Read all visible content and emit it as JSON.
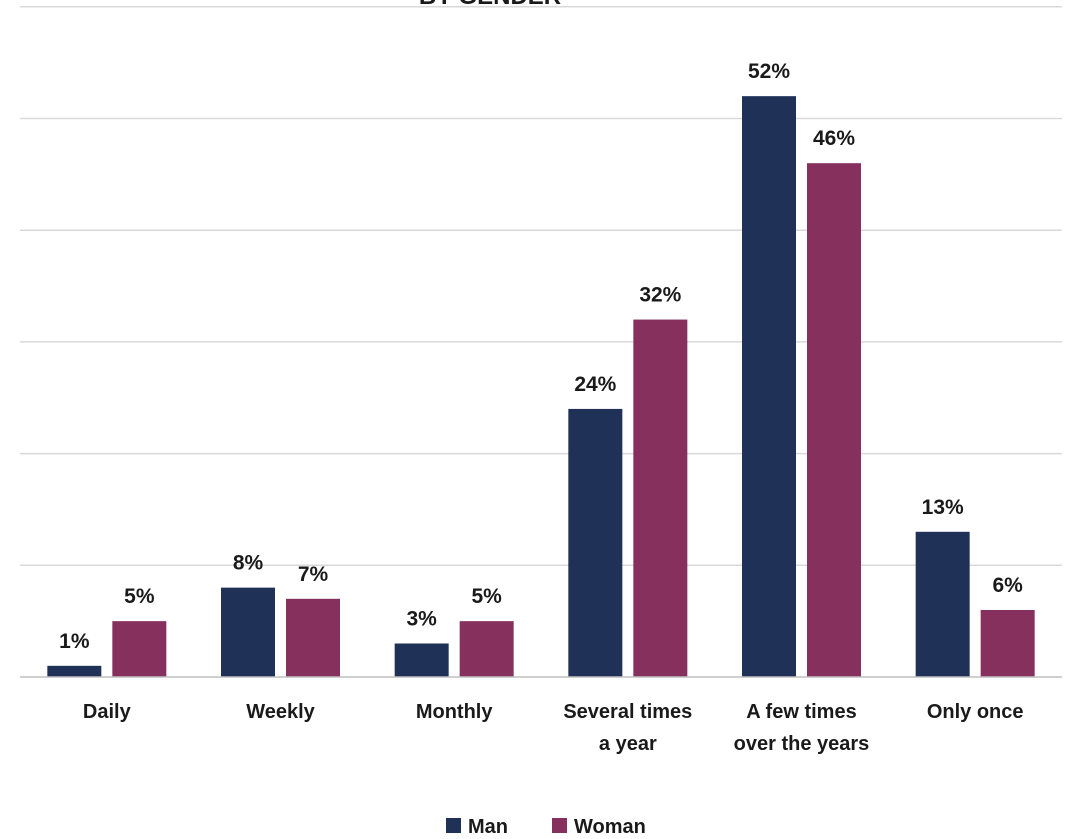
{
  "chart_data": {
    "type": "bar",
    "title": "BY GENDER",
    "categories": [
      [
        "Daily"
      ],
      [
        "Weekly"
      ],
      [
        "Monthly"
      ],
      [
        "Several times",
        "a year"
      ],
      [
        "A few times",
        "over the years"
      ],
      [
        "Only once"
      ]
    ],
    "series": [
      {
        "name": "Man",
        "color": "#1f3157",
        "values": [
          1,
          8,
          3,
          24,
          52,
          13
        ],
        "labels": [
          "1%",
          "8%",
          "3%",
          "24%",
          "52%",
          "13%"
        ]
      },
      {
        "name": "Woman",
        "color": "#86305e",
        "values": [
          5,
          7,
          5,
          32,
          46,
          6
        ],
        "labels": [
          "5%",
          "7%",
          "5%",
          "32%",
          "46%",
          "6%"
        ]
      }
    ],
    "ylim": [
      0,
      60
    ],
    "grid": true,
    "legend_position": "bottom-center"
  }
}
